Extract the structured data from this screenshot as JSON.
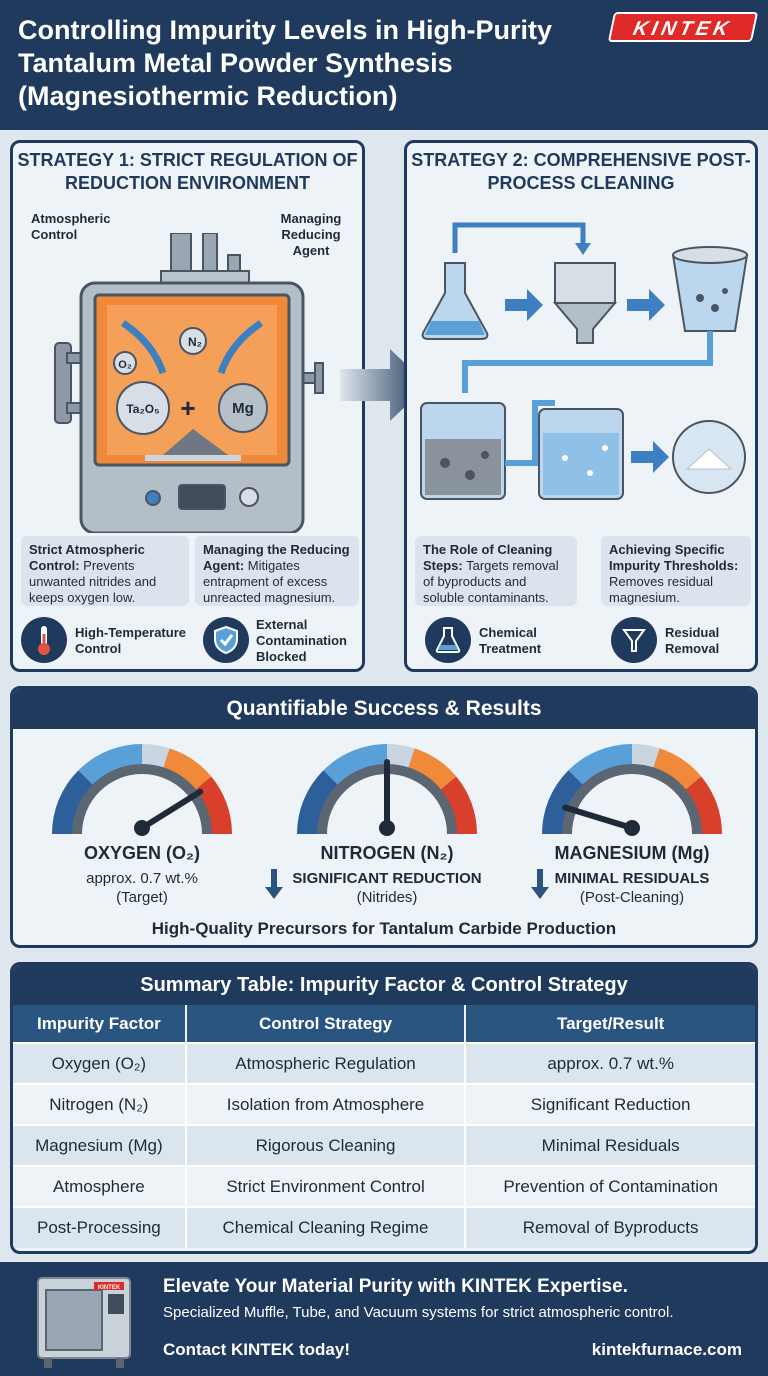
{
  "header": {
    "title": "Controlling Impurity Levels in High-Purity Tantalum Metal Powder Synthesis (Magnesiothermic Reduction)",
    "logo_text": "KINTEK"
  },
  "strategy1": {
    "title": "Strategy 1: Strict Regulation of Reduction Environment",
    "callout_left": "Atmospheric Control",
    "callout_right": "Managing Reducing Agent",
    "chem_n2": "N₂",
    "chem_o2": "O₂",
    "chem_ta2o5": "Ta₂O₅",
    "chem_mg": "Mg",
    "chem_plus": "+",
    "box1_bold": "Strict Atmospheric Control:",
    "box1_text": " Prevents unwanted nitrides and keeps oxygen low.",
    "box2_bold": "Managing the Reducing Agent:",
    "box2_text": " Mitigates entrapment of excess unreacted magnesium.",
    "icon1_label": "High-Temperature Control",
    "icon2_label": "External Contamination Blocked"
  },
  "strategy2": {
    "title": "Strategy 2: Comprehensive Post-Process Cleaning",
    "box1_bold": "The Role of Cleaning Steps:",
    "box1_text": " Targets removal of byproducts and soluble contaminants.",
    "box2_bold": "Achieving Specific Impurity Thresholds:",
    "box2_text": " Removes residual magnesium.",
    "icon1_label": "Chemical Treatment",
    "icon2_label": "Residual Removal"
  },
  "results": {
    "title": "Quantifiable Success & Results",
    "gauges": [
      {
        "name": "OXYGEN (O₂)",
        "line1": "approx. 0.7 wt.%",
        "line2": "(Target)",
        "level": 0.8
      },
      {
        "name": "NITROGEN (N₂)",
        "line1": "SIGNIFICANT REDUCTION",
        "line2": "(Nitrides)",
        "level": 0.5
      },
      {
        "name": "MAGNESIUM (Mg)",
        "line1": "MINIMAL RESIDUALS",
        "line2": "(Post-Cleaning)",
        "level": 0.12
      }
    ],
    "conclusion": "High-Quality Precursors for Tantalum Carbide Production"
  },
  "summary": {
    "title": "Summary Table: Impurity Factor & Control Strategy",
    "headers": [
      "Impurity Factor",
      "Control Strategy",
      "Target/Result"
    ],
    "rows": [
      [
        "Oxygen (O₂)",
        "Atmospheric Regulation",
        "approx. 0.7 wt.%"
      ],
      [
        "Nitrogen (N₂)",
        "Isolation from Atmosphere",
        "Significant Reduction"
      ],
      [
        "Magnesium (Mg)",
        "Rigorous Cleaning",
        "Minimal Residuals"
      ],
      [
        "Atmosphere",
        "Strict Environment Control",
        "Prevention of Contamination"
      ],
      [
        "Post-Processing",
        "Chemical Cleaning Regime",
        "Removal of Byproducts"
      ]
    ]
  },
  "footer": {
    "headline": "Elevate Your Material Purity with KINTEK Expertise.",
    "subline": "Specialized Muffle, Tube, and Vacuum systems for strict atmospheric control.",
    "contact": "Contact KINTEK today!",
    "url": "kintekfurnace.com",
    "device_label": "KINTEK"
  },
  "colors": {
    "navy": "#1f3a5c",
    "accent_blue": "#2a5580",
    "gauge_red": "#d9402b",
    "gauge_blue": "#3d7fc1",
    "furnace_orange": "#f08a3a"
  }
}
